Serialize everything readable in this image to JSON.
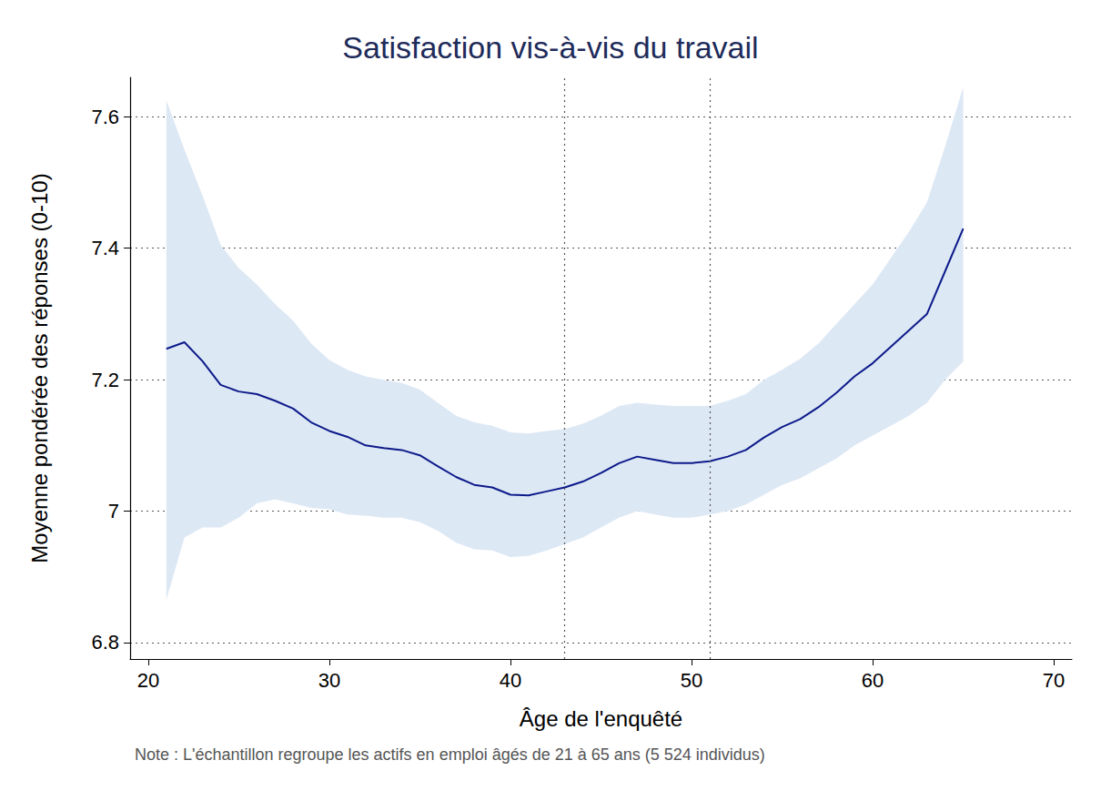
{
  "chart_data": {
    "type": "line",
    "title": "Satisfaction vis-à-vis du travail",
    "xlabel": "Âge de l'enquêté",
    "ylabel": "Moyenne pondérée des réponses (0-10)",
    "note": "Note : L'échantillon regroupe les actifs en emploi âgés de 21 à 65 ans (5 524 individus)",
    "x": [
      21,
      22,
      23,
      24,
      25,
      26,
      27,
      28,
      29,
      30,
      31,
      32,
      33,
      34,
      35,
      36,
      37,
      38,
      39,
      40,
      41,
      42,
      43,
      44,
      45,
      46,
      47,
      48,
      49,
      50,
      51,
      52,
      53,
      54,
      55,
      56,
      57,
      58,
      59,
      60,
      61,
      62,
      63,
      64,
      65
    ],
    "values": [
      7.247,
      7.257,
      7.228,
      7.192,
      7.182,
      7.178,
      7.168,
      7.156,
      7.135,
      7.122,
      7.113,
      7.1,
      7.096,
      7.093,
      7.085,
      7.068,
      7.052,
      7.04,
      7.036,
      7.025,
      7.024,
      7.03,
      7.036,
      7.045,
      7.058,
      7.073,
      7.083,
      7.078,
      7.073,
      7.073,
      7.076,
      7.083,
      7.093,
      7.112,
      7.128,
      7.14,
      7.158,
      7.18,
      7.205,
      7.225,
      7.25,
      7.275,
      7.3,
      7.365,
      7.43
    ],
    "color": "#0c1a8a",
    "band": {
      "lower": [
        6.865,
        6.96,
        6.975,
        6.975,
        6.99,
        7.012,
        7.018,
        7.012,
        7.005,
        7.003,
        6.995,
        6.993,
        6.99,
        6.99,
        6.983,
        6.97,
        6.952,
        6.942,
        6.94,
        6.93,
        6.932,
        6.94,
        6.95,
        6.96,
        6.975,
        6.99,
        7.0,
        6.995,
        6.99,
        6.99,
        6.995,
        7.0,
        7.01,
        7.025,
        7.04,
        7.05,
        7.065,
        7.08,
        7.1,
        7.115,
        7.13,
        7.145,
        7.165,
        7.2,
        7.228
      ],
      "upper": [
        7.625,
        7.55,
        7.48,
        7.405,
        7.37,
        7.345,
        7.315,
        7.29,
        7.255,
        7.23,
        7.215,
        7.205,
        7.2,
        7.195,
        7.185,
        7.165,
        7.145,
        7.135,
        7.13,
        7.12,
        7.118,
        7.122,
        7.125,
        7.133,
        7.145,
        7.16,
        7.165,
        7.162,
        7.16,
        7.16,
        7.16,
        7.168,
        7.178,
        7.2,
        7.215,
        7.232,
        7.255,
        7.285,
        7.315,
        7.345,
        7.385,
        7.425,
        7.47,
        7.555,
        7.645
      ],
      "color": "#dde8f5"
    },
    "vlines": [
      43,
      51
    ],
    "xlim": [
      19,
      71
    ],
    "xticks": [
      20,
      30,
      40,
      50,
      60,
      70
    ],
    "ylim": [
      6.775,
      7.66
    ],
    "yticks": [
      6.8,
      7,
      7.2,
      7.4,
      7.6
    ],
    "grid": "y"
  }
}
